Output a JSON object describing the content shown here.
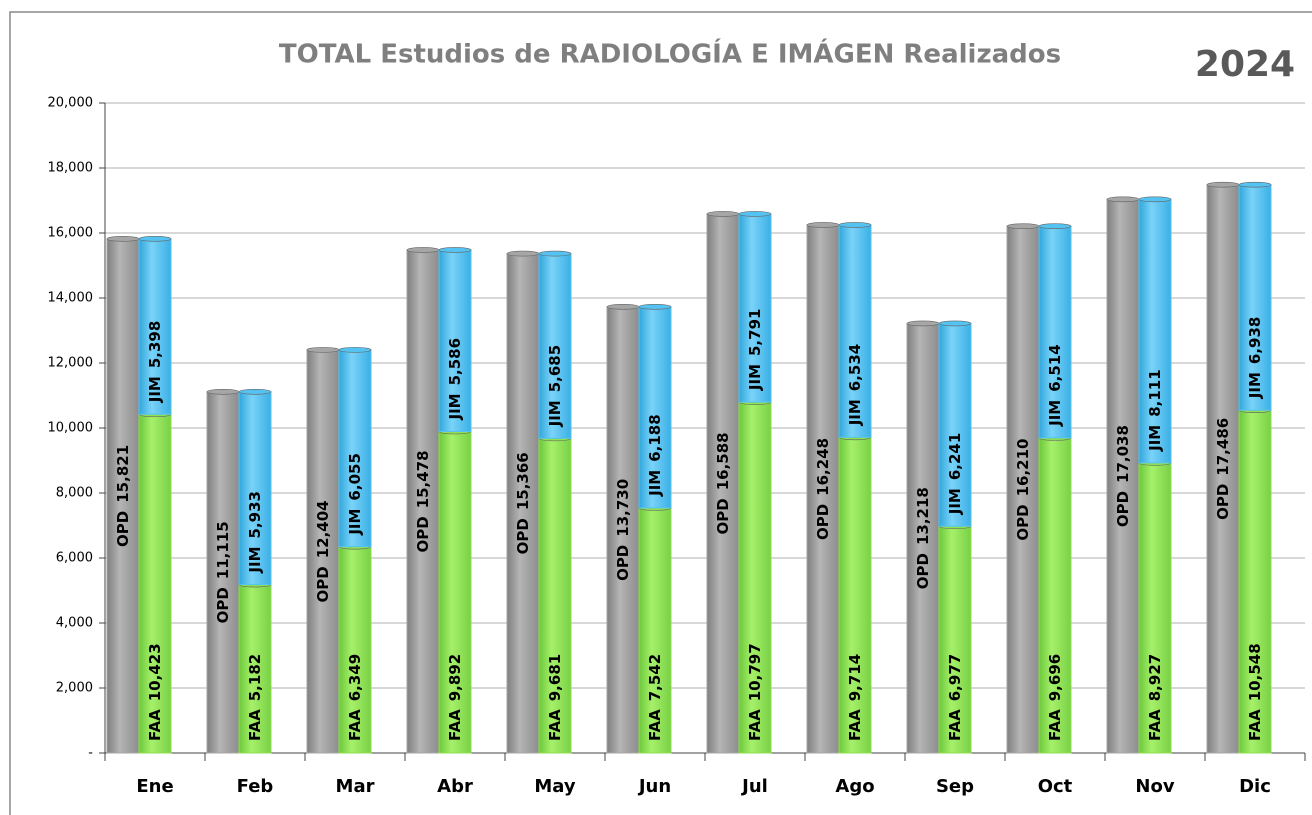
{
  "chart_data": {
    "type": "bar",
    "title": "TOTAL Estudios de RADIOLOGÍA E IMÁGEN Realizados",
    "annotation": "2024",
    "categories": [
      "Ene",
      "Feb",
      "Mar",
      "Abr",
      "May",
      "Jun",
      "Jul",
      "Ago",
      "Sep",
      "Oct",
      "Nov",
      "Dic"
    ],
    "series": [
      {
        "name": "OPD",
        "color": "#a6a6a6",
        "stack": "total",
        "values": [
          15821,
          11115,
          12404,
          15478,
          15366,
          13730,
          16588,
          16248,
          13218,
          16210,
          17038,
          17486
        ],
        "value_labels": [
          "15,821",
          "11,115",
          "12,404",
          "15,478",
          "15,366",
          "13,730",
          "16,588",
          "16,248",
          "13,218",
          "16,210",
          "17,038",
          "17,486"
        ]
      },
      {
        "name": "FAA",
        "color": "#8fe04f",
        "stack": "split",
        "values": [
          10423,
          5182,
          6349,
          9892,
          9681,
          7542,
          10797,
          9714,
          6977,
          9696,
          8927,
          10548
        ],
        "value_labels": [
          "10,423",
          "5,182",
          "6,349",
          "9,892",
          "9,681",
          "7,542",
          "10,797",
          "9,714",
          "6,977",
          "9,696",
          "8,927",
          "10,548"
        ]
      },
      {
        "name": "JIM",
        "color": "#55c3f2",
        "stack": "split",
        "values": [
          5398,
          5933,
          6055,
          5586,
          5685,
          6188,
          5791,
          6534,
          6241,
          6514,
          8111,
          6938
        ],
        "value_labels": [
          "5,398",
          "5,933",
          "6,055",
          "5,586",
          "5,685",
          "6,188",
          "5,791",
          "6,534",
          "6,241",
          "6,514",
          "8,111",
          "6,938"
        ]
      }
    ],
    "ylim": [
      0,
      20000
    ],
    "yticks": [
      {
        "value": 0,
        "label": "-"
      },
      {
        "value": 2000,
        "label": "2,000"
      },
      {
        "value": 4000,
        "label": "4,000"
      },
      {
        "value": 6000,
        "label": "6,000"
      },
      {
        "value": 8000,
        "label": "8,000"
      },
      {
        "value": 10000,
        "label": "10,000"
      },
      {
        "value": 12000,
        "label": "12,000"
      },
      {
        "value": 14000,
        "label": "14,000"
      },
      {
        "value": 16000,
        "label": "16,000"
      },
      {
        "value": 18000,
        "label": "18,000"
      },
      {
        "value": 20000,
        "label": "20,000"
      }
    ],
    "grid": true
  }
}
